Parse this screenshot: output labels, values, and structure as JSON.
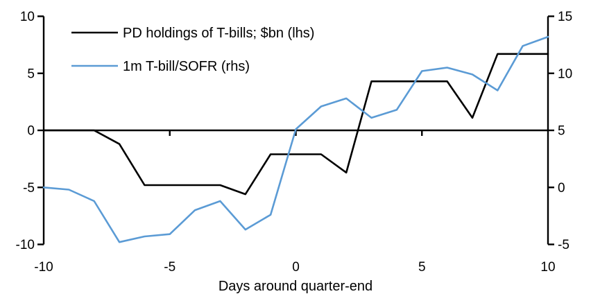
{
  "chart_data": {
    "type": "line",
    "title": "",
    "xlabel": "Days around quarter-end",
    "grid": false,
    "legend_position": "top-left-inside",
    "x": [
      -10,
      -9,
      -8,
      -7,
      -6,
      -5,
      -4,
      -3,
      -2,
      -1,
      0,
      1,
      2,
      3,
      4,
      5,
      6,
      7,
      8,
      9,
      10
    ],
    "series": [
      {
        "id": "pd-holdings",
        "name": "PD holdings of T-bills; $bn (lhs)",
        "axis": "left",
        "color": "#000000",
        "values": [
          0,
          0,
          0,
          -1.2,
          -4.8,
          -4.8,
          -4.8,
          -4.8,
          -5.6,
          -2.1,
          -2.1,
          -2.1,
          -3.7,
          4.3,
          4.3,
          4.3,
          4.3,
          1.1,
          6.7,
          6.7,
          6.7
        ]
      },
      {
        "id": "tbill-sofr",
        "name": "1m T-bill/SOFR (rhs)",
        "axis": "right",
        "color": "#5B9BD5",
        "values": [
          0,
          -0.2,
          -1.2,
          -4.8,
          -4.3,
          -4.1,
          -2.0,
          -1.2,
          -3.7,
          -2.4,
          5.1,
          7.1,
          7.8,
          6.1,
          6.8,
          10.2,
          10.5,
          9.9,
          8.5,
          12.4,
          13.2
        ]
      }
    ],
    "left_axis": {
      "range": [
        -10,
        10
      ],
      "tick_labels": [
        "10",
        "5",
        "0",
        "-5",
        "-10"
      ]
    },
    "right_axis": {
      "range": [
        -5,
        15
      ],
      "tick_labels": [
        "15",
        "10",
        "5",
        "0",
        "-5"
      ]
    },
    "x_axis": {
      "range": [
        -10,
        10
      ],
      "tick_labels": [
        "-10",
        "-5",
        "0",
        "5",
        "10"
      ],
      "tick_marks": [
        -5,
        0,
        5
      ],
      "label": "Days around quarter-end"
    },
    "axis_color": "#000000",
    "background_color": "#ffffff"
  }
}
